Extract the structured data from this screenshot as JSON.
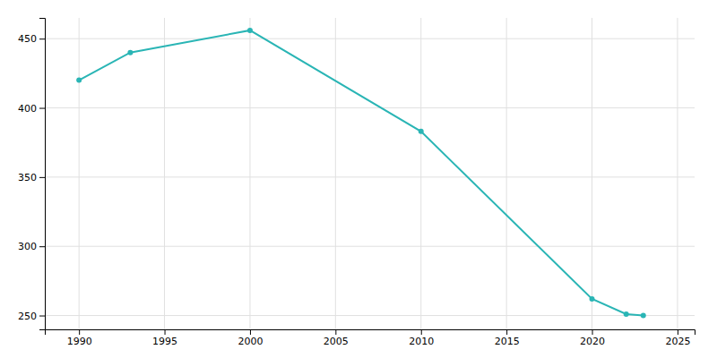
{
  "chart_data": {
    "type": "line",
    "x": [
      1990,
      1993,
      2000,
      2010,
      2020,
      2022,
      2023
    ],
    "values": [
      420,
      440,
      456,
      383,
      262,
      251,
      250
    ],
    "color": "#2ab5b5",
    "marker": "circle",
    "xlim": [
      1988,
      2026
    ],
    "ylim": [
      240,
      465
    ],
    "xticks": [
      1990,
      1995,
      2000,
      2005,
      2010,
      2015,
      2020,
      2025
    ],
    "yticks": [
      250,
      300,
      350,
      400,
      450
    ],
    "grid": true
  }
}
